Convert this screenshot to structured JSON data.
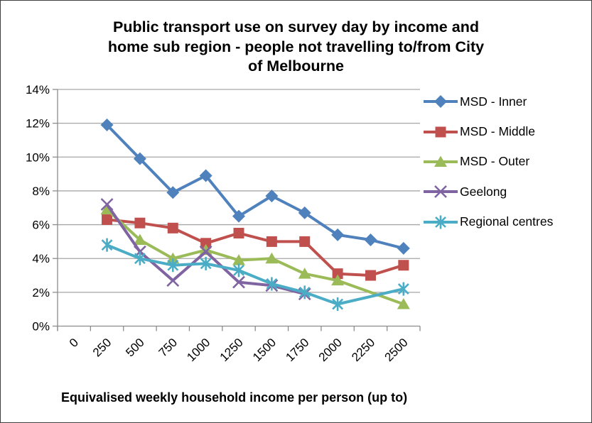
{
  "title_lines": [
    "Public transport use on survey day by income and",
    "home sub region - people not travelling to/from City",
    "of Melbourne"
  ],
  "chart_data": {
    "type": "line",
    "title": "Public transport use on survey day by income and home sub region - people not travelling to/from City of Melbourne",
    "xlabel": "Equivalised weekly household income per person (up to)",
    "ylabel": "",
    "categories": [
      "0",
      "250",
      "500",
      "750",
      "1000",
      "1250",
      "1500",
      "1750",
      "2000",
      "2250",
      "2500"
    ],
    "y_ticks": [
      "0%",
      "2%",
      "4%",
      "6%",
      "8%",
      "10%",
      "12%",
      "14%"
    ],
    "ylim": [
      0,
      14
    ],
    "grid": true,
    "legend_position": "right",
    "axis_color": "#8c8c8c",
    "gridline_color": "#a6a6a6",
    "series": [
      {
        "name": "MSD - Inner",
        "color": "#4F81BD",
        "marker": "diamond",
        "values": [
          null,
          11.9,
          9.9,
          7.9,
          8.9,
          6.5,
          7.7,
          6.7,
          5.4,
          5.1,
          4.6
        ]
      },
      {
        "name": "MSD - Middle",
        "color": "#C0504D",
        "marker": "square",
        "values": [
          null,
          6.3,
          6.1,
          5.8,
          4.9,
          5.5,
          5.0,
          5.0,
          3.1,
          3.0,
          3.6
        ]
      },
      {
        "name": "MSD - Outer",
        "color": "#9BBB59",
        "marker": "triangle",
        "values": [
          null,
          6.9,
          5.1,
          4.0,
          4.5,
          3.9,
          4.0,
          3.1,
          2.7,
          null,
          1.3
        ]
      },
      {
        "name": "Geelong",
        "color": "#8064A2",
        "marker": "x",
        "values": [
          null,
          7.2,
          4.4,
          2.7,
          4.4,
          2.6,
          2.4,
          1.9,
          null,
          null,
          null
        ]
      },
      {
        "name": "Regional centres",
        "color": "#4BACC6",
        "marker": "asterisk",
        "values": [
          null,
          4.8,
          4.0,
          3.6,
          3.7,
          3.3,
          2.5,
          2.0,
          1.3,
          null,
          2.2
        ]
      }
    ]
  }
}
